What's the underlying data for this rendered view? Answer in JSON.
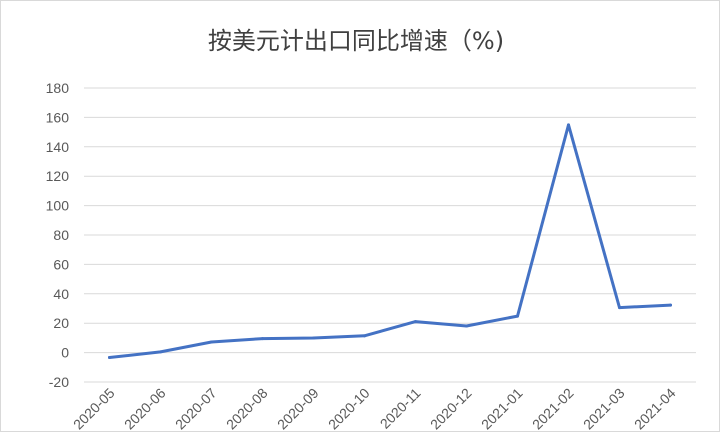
{
  "chart_data": {
    "type": "line",
    "title": "按美元计出口同比增速（%)",
    "xlabel": "",
    "ylabel": "",
    "categories": [
      "2020-05",
      "2020-06",
      "2020-07",
      "2020-08",
      "2020-09",
      "2020-10",
      "2020-11",
      "2020-12",
      "2021-01",
      "2021-02",
      "2021-03",
      "2021-04"
    ],
    "series": [
      {
        "values": [
          -3.3,
          0.5,
          7.2,
          9.5,
          9.9,
          11.4,
          21.1,
          18.1,
          24.8,
          154.9,
          30.6,
          32.3
        ],
        "color": "#4472c4"
      }
    ],
    "ylim": [
      -20,
      180
    ],
    "yticks": [
      -20,
      0,
      20,
      40,
      60,
      80,
      100,
      120,
      140,
      160,
      180
    ],
    "grid": true,
    "legend": "none"
  }
}
